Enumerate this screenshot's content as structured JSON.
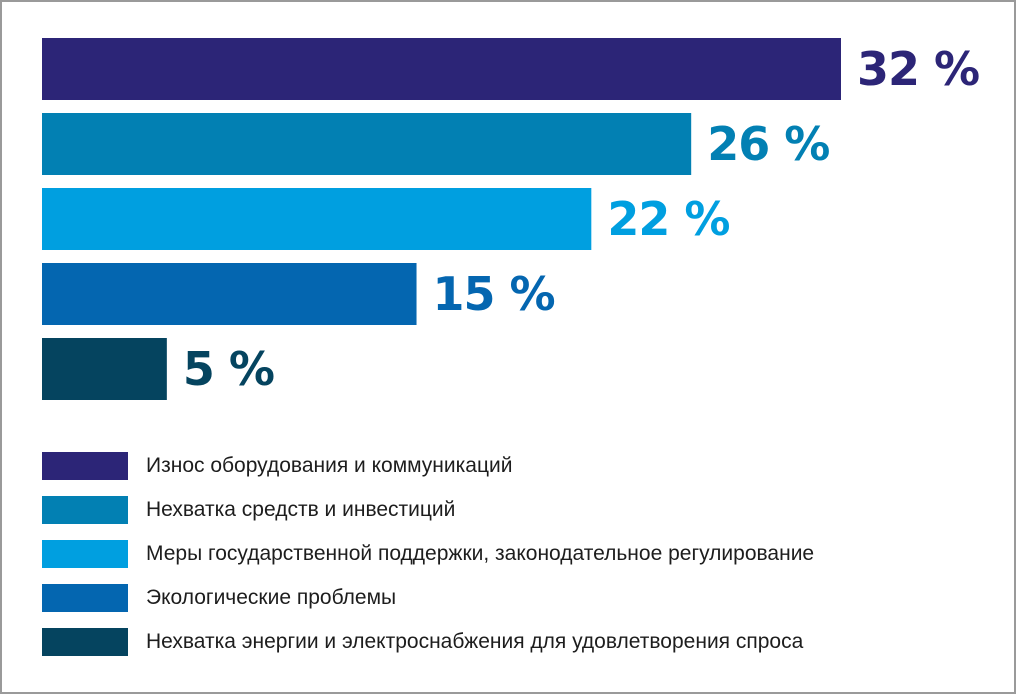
{
  "chart_data": {
    "type": "bar",
    "orientation": "horizontal",
    "unit": "%",
    "categories": [
      "Износ оборудования и коммуникаций",
      "Нехватка средств и инвестиций",
      "Меры государственной поддержки, законодательное регулирование",
      "Экологические проблемы",
      "Нехватка энергии и электроснабжения для удовлетворения спроса"
    ],
    "values": [
      32,
      26,
      22,
      15,
      5
    ],
    "value_labels": [
      "32 %",
      "26 %",
      "22 %",
      "15 %",
      "5 %"
    ],
    "colors": [
      "#2c2577",
      "#0280b3",
      "#009fe0",
      "#0466b0",
      "#05445f"
    ],
    "xlim": [
      0,
      32
    ],
    "legend_position": "bottom-left",
    "title": "",
    "xlabel": "",
    "ylabel": ""
  }
}
